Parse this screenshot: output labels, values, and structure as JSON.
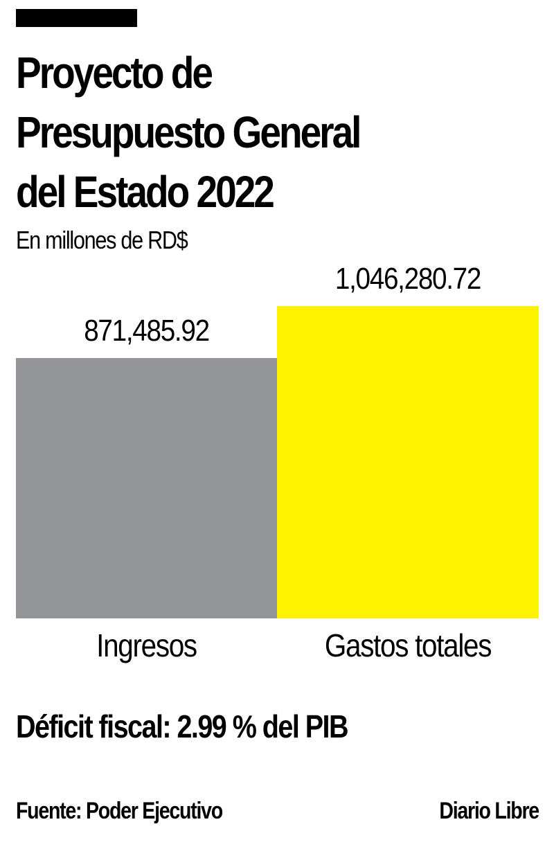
{
  "header": {
    "title_lines": [
      "Proyecto de",
      "Presupuesto General",
      "del Estado 2022"
    ],
    "subtitle": "En millones de RD$"
  },
  "chart_data": {
    "type": "bar",
    "title": "Proyecto de Presupuesto General del Estado 2022",
    "subtitle": "En millones de RD$",
    "categories": [
      "Ingresos",
      "Gastos totales"
    ],
    "values": [
      871485.92,
      1046280.72
    ],
    "value_labels": [
      "871,485.92",
      "1,046,280.72"
    ],
    "colors": [
      "#939598",
      "#fff200"
    ],
    "xlabel": "",
    "ylabel": "",
    "ylim": [
      0,
      1046280.72
    ],
    "grid": false,
    "legend": "none"
  },
  "notes": {
    "deficit": "Déficit fiscal: 2.99 % del PIB"
  },
  "footer": {
    "source": "Fuente: Poder Ejecutivo",
    "brand": "Diario Libre"
  }
}
